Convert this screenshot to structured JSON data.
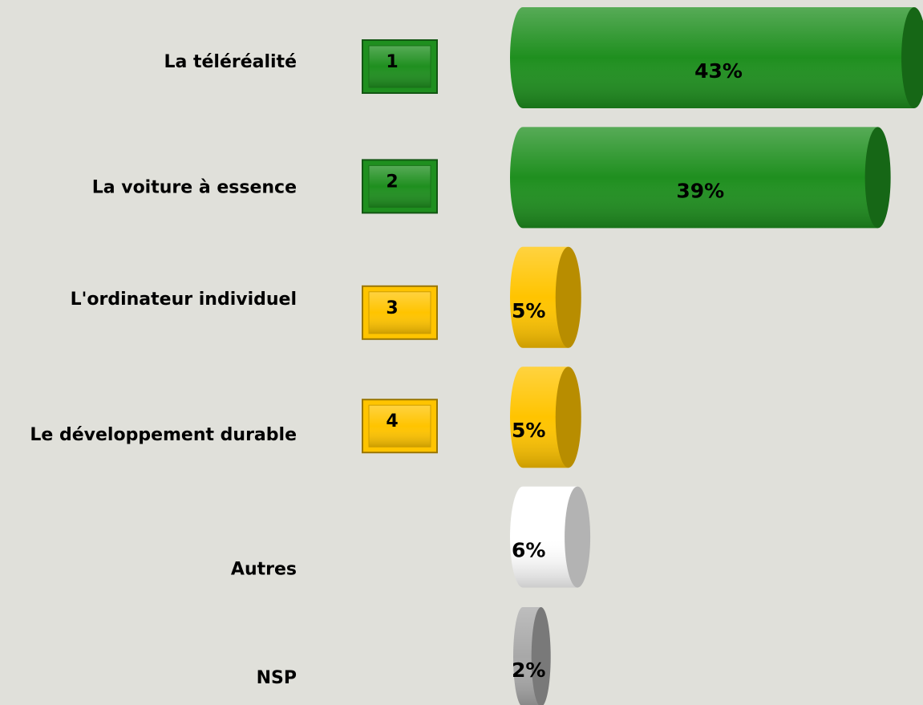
{
  "chart_data": {
    "type": "bar",
    "categories": [
      "La téléréalité",
      "La voiture à essence",
      "L'ordinateur individuel",
      "Le développement durable",
      "Autres",
      "NSP"
    ],
    "values": [
      43,
      39,
      5,
      5,
      6,
      2
    ],
    "value_labels": [
      "43%",
      "39%",
      "5%",
      "5%",
      "6%",
      "2%"
    ],
    "ranks": [
      1,
      2,
      3,
      4,
      null,
      null
    ],
    "colors": [
      "#1f8f1f",
      "#1f8f1f",
      "#ffc400",
      "#ffc400",
      "#ffffff",
      "#a8a8a8"
    ]
  }
}
